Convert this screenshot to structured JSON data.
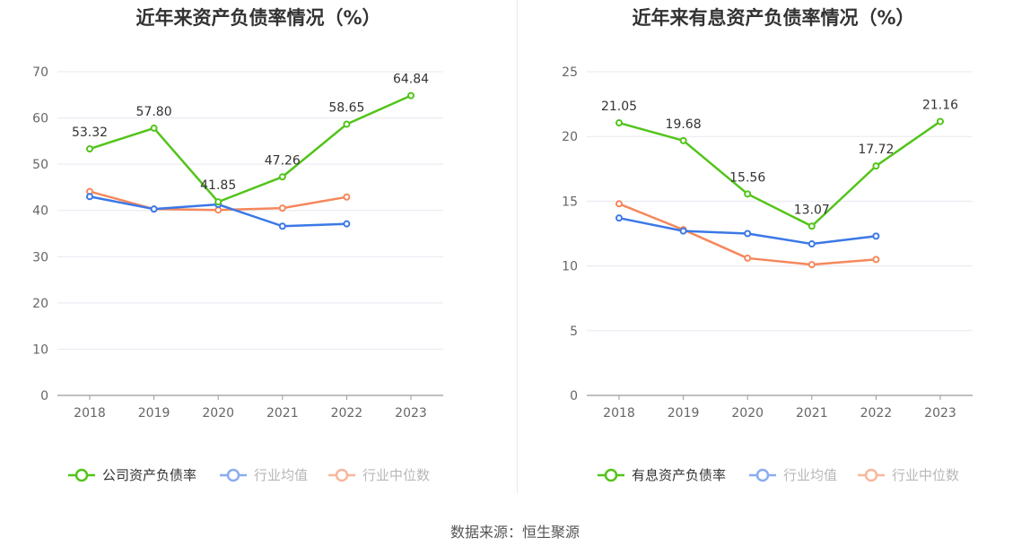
{
  "source": "数据来源：恒生聚源",
  "chart_data": [
    {
      "type": "line",
      "title": "近年来资产负债率情况（%）",
      "categories": [
        "2018",
        "2019",
        "2020",
        "2021",
        "2022",
        "2023"
      ],
      "ylim": [
        0,
        70
      ],
      "yticks": [
        "0",
        "10",
        "20",
        "30",
        "40",
        "50",
        "60",
        "70"
      ],
      "grid": true,
      "legend_position": "bottom",
      "series": [
        {
          "name": "公司资产负债率",
          "color": "#52c41a",
          "labels": true,
          "values": [
            53.32,
            57.8,
            41.85,
            47.26,
            58.65,
            64.84
          ],
          "value_labels": [
            "53.32",
            "57.80",
            "41.85",
            "47.26",
            "58.65",
            "64.84"
          ]
        },
        {
          "name": "行业均值",
          "color": "#3b78e7",
          "labels": false,
          "values": [
            43.0,
            40.3,
            41.3,
            36.6,
            37.1,
            null
          ]
        },
        {
          "name": "行业中位数",
          "color": "#f5885c",
          "labels": false,
          "values": [
            44.1,
            40.3,
            40.1,
            40.5,
            42.9,
            null
          ]
        }
      ]
    },
    {
      "type": "line",
      "title": "近年来有息资产负债率情况（%）",
      "categories": [
        "2018",
        "2019",
        "2020",
        "2021",
        "2022",
        "2023"
      ],
      "ylim": [
        0,
        25
      ],
      "yticks": [
        "0",
        "5",
        "10",
        "15",
        "20",
        "25"
      ],
      "grid": true,
      "legend_position": "bottom",
      "series": [
        {
          "name": "有息资产负债率",
          "color": "#52c41a",
          "labels": true,
          "values": [
            21.05,
            19.68,
            15.56,
            13.07,
            17.72,
            21.16
          ],
          "value_labels": [
            "21.05",
            "19.68",
            "15.56",
            "13.07",
            "17.72",
            "21.16"
          ]
        },
        {
          "name": "行业均值",
          "color": "#3b78e7",
          "labels": false,
          "values": [
            13.7,
            12.7,
            12.5,
            11.7,
            12.3,
            null
          ]
        },
        {
          "name": "行业中位数",
          "color": "#f5885c",
          "labels": false,
          "values": [
            14.8,
            12.8,
            10.6,
            10.1,
            10.5,
            null
          ]
        }
      ]
    }
  ]
}
